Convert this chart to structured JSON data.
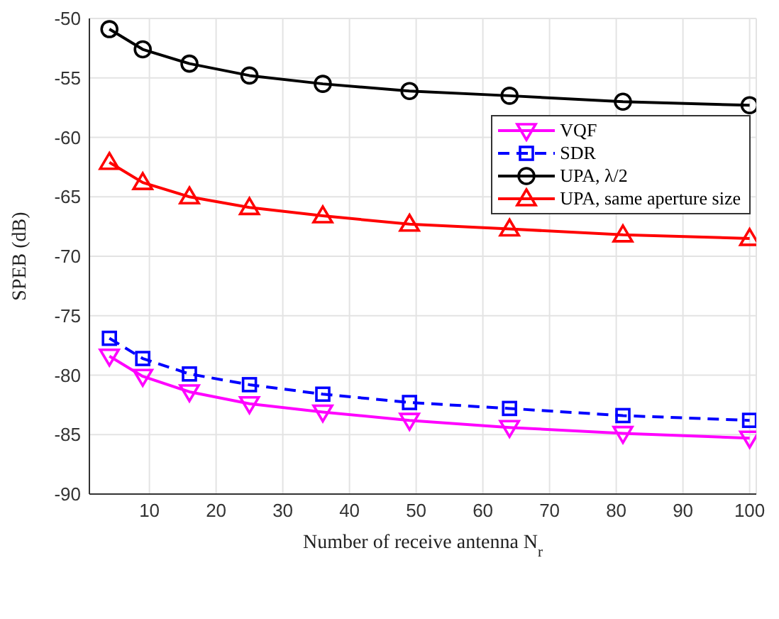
{
  "chart_data": {
    "type": "line",
    "xlabel": "Number of receive antenna N$_{r}$",
    "ylabel": "SPEB (dB)",
    "x": [
      4,
      9,
      16,
      25,
      36,
      49,
      64,
      81,
      100
    ],
    "xlim": [
      1,
      101
    ],
    "xticks": [
      10,
      20,
      30,
      40,
      50,
      60,
      70,
      80,
      90,
      100
    ],
    "ylim": [
      -90,
      -50
    ],
    "yticks": [
      -90,
      -85,
      -80,
      -75,
      -70,
      -65,
      -60,
      -55,
      -50
    ],
    "grid": true,
    "legend": "right",
    "series": [
      {
        "name": "VQF",
        "color": "#ff00ff",
        "marker": "triangle-down",
        "line_style": "solid",
        "values": [
          -78.4,
          -80.1,
          -81.4,
          -82.4,
          -83.1,
          -83.8,
          -84.4,
          -84.9,
          -85.3
        ]
      },
      {
        "name": "SDR",
        "color": "#0000ff",
        "marker": "square",
        "line_style": "dashed",
        "values": [
          -76.9,
          -78.6,
          -79.9,
          -80.8,
          -81.6,
          -82.3,
          -82.8,
          -83.4,
          -83.8
        ]
      },
      {
        "name": "UPA, λ/2",
        "color": "#000000",
        "marker": "circle",
        "line_style": "solid",
        "values": [
          -50.9,
          -52.6,
          -53.8,
          -54.8,
          -55.5,
          -56.1,
          -56.5,
          -57.0,
          -57.3
        ]
      },
      {
        "name": "UPA, same aperture size",
        "color": "#ff0000",
        "marker": "triangle",
        "line_style": "solid",
        "values": [
          -62.1,
          -63.8,
          -65.0,
          -65.9,
          -66.6,
          -67.3,
          -67.7,
          -68.2,
          -68.5
        ]
      }
    ]
  }
}
